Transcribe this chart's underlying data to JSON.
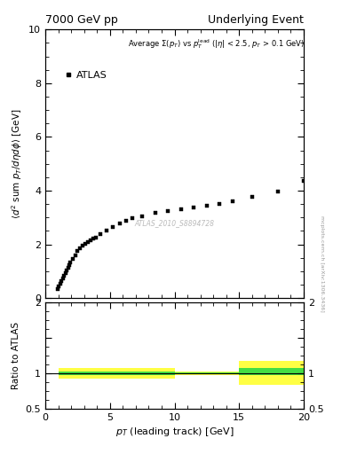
{
  "title_left": "7000 GeV pp",
  "title_right": "Underlying Event",
  "dataset_label": "ATLAS_2010_S8894728",
  "legend_label": "ATLAS",
  "ylabel_main": "$\\langle d^2$ sum $p_T/d\\eta d\\phi\\rangle$ [GeV]",
  "ylabel_ratio": "Ratio to ATLAS",
  "xlabel": "$p_T$ (leading track) [GeV]",
  "xlim": [
    0,
    20
  ],
  "ylim_main": [
    0,
    10
  ],
  "ylim_ratio": [
    0.5,
    2.0
  ],
  "watermark": "mcplots.cern.ch [arXiv:1306.3436]",
  "data_x": [
    0.95,
    1.05,
    1.15,
    1.25,
    1.35,
    1.45,
    1.55,
    1.65,
    1.75,
    1.85,
    1.95,
    2.1,
    2.3,
    2.5,
    2.7,
    2.9,
    3.1,
    3.3,
    3.5,
    3.7,
    3.9,
    4.25,
    4.75,
    5.25,
    5.75,
    6.25,
    6.75,
    7.5,
    8.5,
    9.5,
    10.5,
    11.5,
    12.5,
    13.5,
    14.5,
    16.0,
    18.0,
    20.0
  ],
  "data_y": [
    0.32,
    0.42,
    0.52,
    0.62,
    0.72,
    0.82,
    0.93,
    1.03,
    1.13,
    1.22,
    1.31,
    1.45,
    1.6,
    1.74,
    1.86,
    1.95,
    2.02,
    2.1,
    2.16,
    2.21,
    2.26,
    2.38,
    2.52,
    2.65,
    2.77,
    2.88,
    2.97,
    3.05,
    3.16,
    3.25,
    3.32,
    3.38,
    3.45,
    3.52,
    3.6,
    3.78,
    3.97,
    4.35
  ],
  "color_yellow": "#ffff44",
  "color_green": "#44dd44",
  "color_data": "#000000",
  "marker_size": 3.5,
  "marker": "s"
}
